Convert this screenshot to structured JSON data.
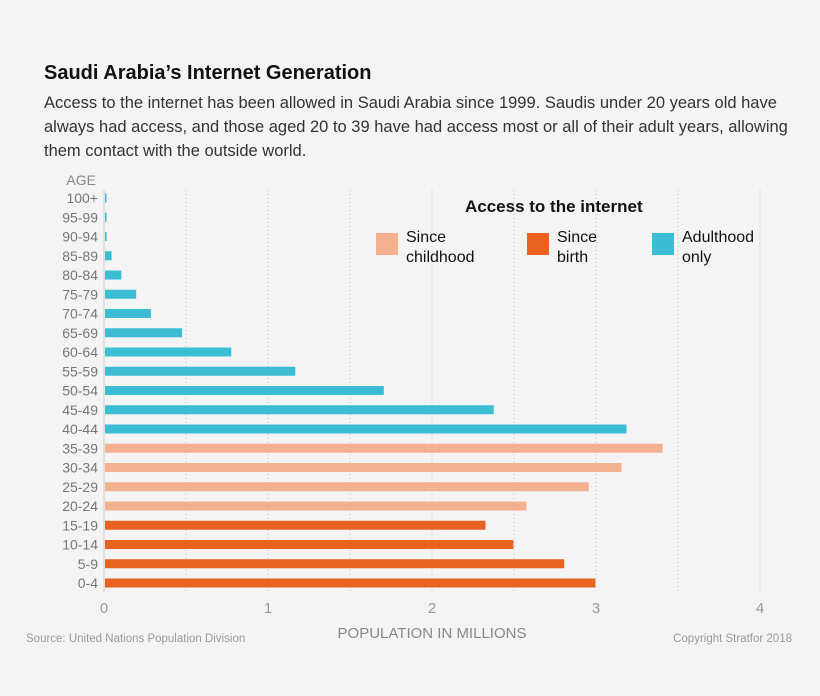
{
  "title": "Saudi Arabia’s Internet Generation",
  "subtitle": "Access to the internet has been allowed in Saudi Arabia since 1999. Saudis under 20 years old have always had access, and those aged 20 to 39 have had access most or all of their adult years, allowing them contact with the outside world.",
  "source": "Source: United Nations Population Division",
  "copyright": "Copyright Stratfor 2018",
  "chart_data": {
    "type": "bar",
    "orientation": "horizontal",
    "ylabel": "AGE",
    "xlabel": "POPULATION IN  MILLIONS",
    "xlim": [
      0,
      4
    ],
    "xticks": [
      "0",
      "1",
      "2",
      "3",
      "4"
    ],
    "grid": true,
    "legend": {
      "title": "Access to the internet",
      "placement": "top-right",
      "entries": [
        {
          "lines": [
            "Since",
            "childhood"
          ],
          "color": "#f4b190"
        },
        {
          "lines": [
            "Since",
            "birth"
          ],
          "color": "#e8631f"
        },
        {
          "lines": [
            "Adulthood",
            "only"
          ],
          "color": "#3bbdd4"
        }
      ]
    },
    "categories": [
      "100+",
      "95-99",
      "90-94",
      "85-89",
      "80-84",
      "75-79",
      "70-74",
      "65-69",
      "60-64",
      "55-59",
      "50-54",
      "45-49",
      "40-44",
      "35-39",
      "30-34",
      "25-29",
      "20-24",
      "15-19",
      "10-14",
      "5-9",
      "0-4"
    ],
    "values": [
      0.005,
      0.004,
      0.01,
      0.04,
      0.1,
      0.19,
      0.28,
      0.47,
      0.77,
      1.16,
      1.7,
      2.37,
      3.18,
      3.4,
      3.15,
      2.95,
      2.57,
      2.32,
      2.49,
      2.8,
      2.99
    ],
    "groups": [
      2,
      2,
      2,
      2,
      2,
      2,
      2,
      2,
      2,
      2,
      2,
      2,
      2,
      0,
      0,
      0,
      0,
      1,
      1,
      1,
      1
    ]
  }
}
